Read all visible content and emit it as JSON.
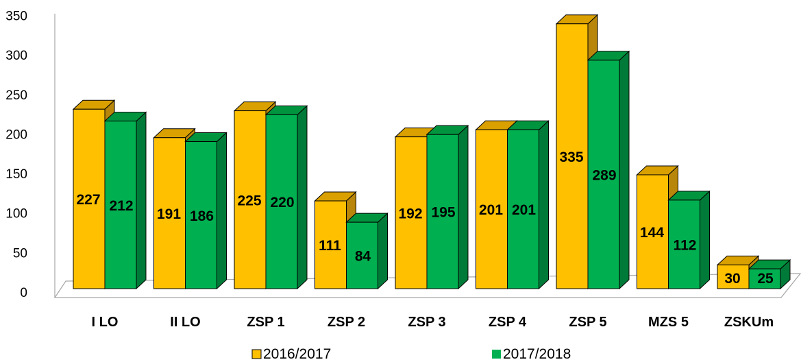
{
  "chart_data": {
    "type": "bar",
    "title": "",
    "xlabel": "",
    "ylabel": "",
    "categories": [
      "I LO",
      "II LO",
      "ZSP 1",
      "ZSP 2",
      "ZSP 3",
      "ZSP 4",
      "ZSP 5",
      "MZS 5",
      "ZSKUm"
    ],
    "series": [
      {
        "name": "2016/2017",
        "values": [
          227,
          191,
          225,
          111,
          192,
          201,
          335,
          144,
          30
        ],
        "color": "#FFC000"
      },
      {
        "name": "2017/2018",
        "values": [
          212,
          186,
          220,
          84,
          195,
          201,
          289,
          112,
          25
        ],
        "color": "#00B050"
      }
    ],
    "ylim": [
      0,
      350
    ],
    "yticks": [
      0,
      50,
      100,
      150,
      200,
      250,
      300,
      350
    ],
    "grid": false,
    "legend": "bottom",
    "style": "3d-column"
  }
}
